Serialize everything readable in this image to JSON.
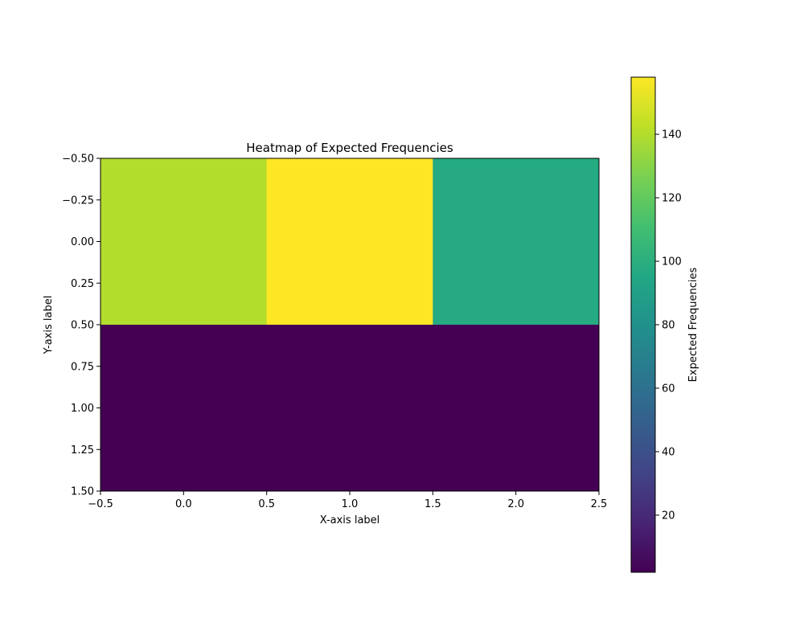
{
  "chart_data": {
    "type": "heatmap",
    "title": "Heatmap of Expected Frequencies",
    "xlabel": "X-axis label",
    "ylabel": "Y-axis label",
    "x_extent": [
      -0.5,
      2.5
    ],
    "y_extent": [
      -0.5,
      1.5
    ],
    "y_inverted": true,
    "x_ticks": [
      -0.5,
      0.0,
      0.5,
      1.0,
      1.5,
      2.0,
      2.5
    ],
    "x_tick_labels": [
      "−0.5",
      "0.0",
      "0.5",
      "1.0",
      "1.5",
      "2.0",
      "2.5"
    ],
    "y_ticks": [
      -0.5,
      -0.25,
      0.0,
      0.25,
      0.5,
      0.75,
      1.0,
      1.25,
      1.5
    ],
    "y_tick_labels": [
      "−0.50",
      "−0.25",
      "0.00",
      "0.25",
      "0.50",
      "0.75",
      "1.00",
      "1.25",
      "1.50"
    ],
    "values": [
      [
        140,
        158,
        97
      ],
      [
        2,
        2,
        2
      ]
    ],
    "colorscale": "viridis",
    "colorbar": {
      "label": "Expected Frequencies",
      "range": [
        2,
        158
      ],
      "ticks": [
        20,
        40,
        60,
        80,
        100,
        120,
        140
      ],
      "tick_labels": [
        "20",
        "40",
        "60",
        "80",
        "100",
        "120",
        "140"
      ]
    },
    "grid": false
  }
}
